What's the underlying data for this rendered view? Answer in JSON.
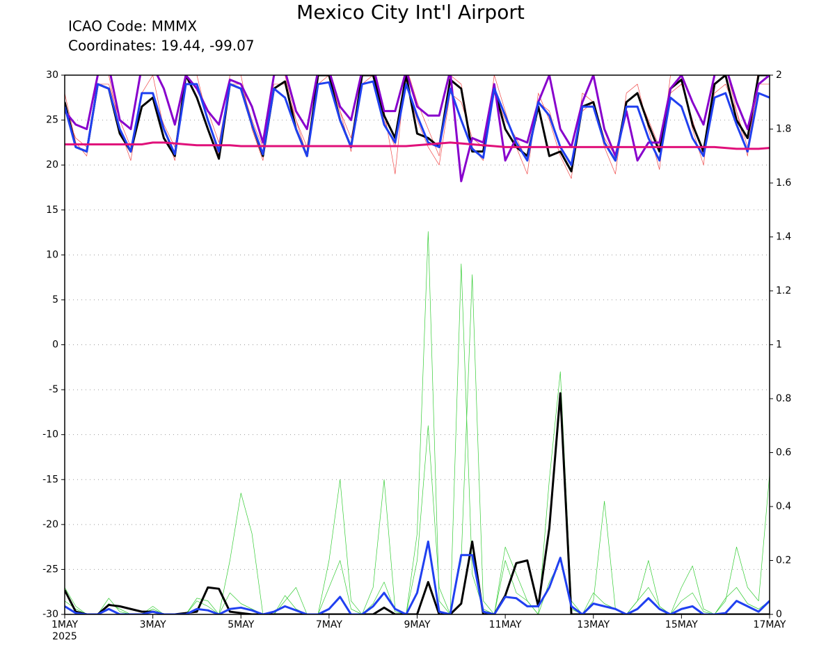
{
  "chart_data": {
    "type": "line",
    "title": "Mexico City Int'l Airport",
    "subtitle_lines": [
      "ICAO Code: MMMX",
      "Coordinates: 19.44, -99.07"
    ],
    "x": [
      0,
      0.25,
      0.5,
      0.75,
      1,
      1.25,
      1.5,
      1.75,
      2,
      2.25,
      2.5,
      2.75,
      3,
      3.25,
      3.5,
      3.75,
      4,
      4.25,
      4.5,
      4.75,
      5,
      5.25,
      5.5,
      5.75,
      6,
      6.25,
      6.5,
      6.75,
      7,
      7.25,
      7.5,
      7.75,
      8,
      8.25,
      8.5,
      8.75,
      9,
      9.25,
      9.5,
      9.75,
      10,
      10.25,
      10.5,
      10.75,
      11,
      11.25,
      11.5,
      11.75,
      12,
      12.25,
      12.5,
      12.75,
      13,
      13.25,
      13.5,
      13.75,
      14,
      14.25,
      14.5,
      14.75,
      15,
      15.25,
      15.5,
      15.75,
      16
    ],
    "xlim": [
      0,
      16
    ],
    "xticks": [
      {
        "value": 0,
        "label": "1MAY"
      },
      {
        "value": 2,
        "label": "3MAY"
      },
      {
        "value": 4,
        "label": "5MAY"
      },
      {
        "value": 6,
        "label": "7MAY"
      },
      {
        "value": 8,
        "label": "9MAY"
      },
      {
        "value": 10,
        "label": "11MAY"
      },
      {
        "value": 12,
        "label": "13MAY"
      },
      {
        "value": 14,
        "label": "15MAY"
      },
      {
        "value": 16,
        "label": "17MAY"
      }
    ],
    "x_year_label": "2025",
    "ylim": [
      -30,
      30
    ],
    "yticks": [
      -30,
      -25,
      -20,
      -15,
      -10,
      -5,
      0,
      5,
      10,
      15,
      20,
      25,
      30
    ],
    "y2lim": [
      0,
      2
    ],
    "y2ticks": [
      0,
      0.2,
      0.4,
      0.6,
      0.8,
      1,
      1.2,
      1.4,
      1.6,
      1.8,
      2
    ],
    "grid": true,
    "series": [
      {
        "color": "#f04848",
        "linewidth": 0.7,
        "values": [
          28,
          22.5,
          21,
          30,
          30,
          24,
          20.5,
          28,
          30,
          24,
          20.5,
          30,
          30,
          25,
          21,
          30,
          30,
          24,
          20.5,
          30,
          30,
          25,
          21,
          31,
          31,
          26,
          21.5,
          31,
          31,
          26,
          19,
          31,
          27,
          24,
          21,
          30,
          29,
          22,
          20.5,
          30,
          26,
          22,
          19,
          28,
          25,
          21,
          18.5,
          28,
          27,
          22,
          19,
          28,
          29,
          24,
          19.5,
          30,
          30,
          24,
          20,
          30,
          31,
          26,
          21,
          31,
          31
        ]
      },
      {
        "color": "#f04848",
        "linewidth": 0.7,
        "values": [
          26,
          23,
          22,
          29,
          29,
          25,
          22,
          28,
          28,
          24.5,
          22,
          29,
          29,
          26,
          22.5,
          29,
          29,
          25,
          22,
          29,
          29,
          25,
          22,
          29,
          30,
          26,
          23,
          29,
          30,
          25,
          22,
          29,
          25,
          22,
          20,
          28,
          27,
          23,
          22,
          28,
          25,
          23,
          20.5,
          27,
          26,
          22,
          20,
          26,
          27,
          23,
          21,
          27,
          28,
          25,
          22,
          28,
          29,
          25,
          21,
          28,
          29,
          26,
          22,
          29,
          29
        ]
      },
      {
        "color": "#33cc33",
        "linewidth": 0.7,
        "axis": "y2",
        "values": [
          0.05,
          0.02,
          0,
          0,
          0.06,
          0.01,
          0,
          0,
          0.02,
          0,
          0,
          0,
          0.05,
          0.03,
          0,
          0.08,
          0.04,
          0.02,
          0,
          0,
          0.07,
          0.02,
          0,
          0,
          0.1,
          0.2,
          0.02,
          0,
          0.04,
          0.12,
          0.01,
          0,
          0.3,
          1.42,
          0.05,
          0,
          1.3,
          0.15,
          0.02,
          0,
          0.2,
          0.08,
          0.05,
          0,
          0.12,
          0.2,
          0.02,
          0,
          0.08,
          0.04,
          0.02,
          0,
          0.05,
          0.1,
          0.03,
          0,
          0.05,
          0.08,
          0.01,
          0,
          0.06,
          0.1,
          0.04,
          0.02,
          0.05
        ]
      },
      {
        "color": "#33cc33",
        "linewidth": 0.7,
        "axis": "y2",
        "values": [
          0.1,
          0.03,
          0,
          0,
          0.04,
          0.02,
          0,
          0,
          0.03,
          0,
          0,
          0,
          0.06,
          0.05,
          0,
          0.2,
          0.45,
          0.3,
          0,
          0,
          0.05,
          0.1,
          0,
          0,
          0.2,
          0.5,
          0.05,
          0,
          0.1,
          0.5,
          0.02,
          0,
          0.2,
          0.7,
          0.1,
          0,
          0.2,
          1.26,
          0.05,
          0,
          0.25,
          0.15,
          0.05,
          0,
          0.5,
          0.9,
          0.05,
          0,
          0.05,
          0.42,
          0.02,
          0,
          0.05,
          0.2,
          0.03,
          0,
          0.1,
          0.18,
          0.02,
          0,
          0.05,
          0.25,
          0.1,
          0.05,
          0.52
        ]
      },
      {
        "color": "#000000",
        "linewidth": 3,
        "values": [
          27,
          22,
          21.5,
          29,
          28.5,
          23.5,
          21.5,
          26.5,
          27.5,
          23,
          21,
          30,
          27.5,
          24,
          20.7,
          29,
          28.5,
          24.5,
          21,
          28.5,
          29.3,
          24,
          21,
          30,
          30,
          25,
          22,
          30,
          30,
          25.5,
          23,
          30,
          23.5,
          23,
          22,
          29.5,
          28.5,
          21.5,
          21.5,
          28.5,
          24,
          22,
          21,
          26.5,
          21,
          21.5,
          19.3,
          26.5,
          27,
          22.5,
          20.5,
          27,
          28,
          24.5,
          21.5,
          28.5,
          29.5,
          24.5,
          21.5,
          29,
          30,
          25,
          23,
          30,
          30
        ]
      },
      {
        "color": "#8800cc",
        "linewidth": 3,
        "values": [
          26,
          24.5,
          24,
          30,
          31,
          25,
          24,
          31,
          31,
          28.5,
          24.5,
          30,
          28.5,
          26,
          24.5,
          29.5,
          29,
          26.5,
          22.5,
          30,
          30.5,
          26,
          24,
          30.5,
          30.5,
          26.5,
          25,
          30.5,
          31,
          26,
          26,
          30.5,
          26.5,
          25.5,
          25.5,
          30.5,
          18.2,
          23,
          22.5,
          29,
          20.5,
          23,
          22.5,
          27,
          30,
          24,
          22,
          27,
          30,
          24,
          21,
          26,
          20.5,
          22.5,
          22.5,
          28.5,
          30,
          27,
          24.5,
          30,
          31,
          27,
          24,
          29,
          30
        ]
      },
      {
        "color": "#2040f0",
        "linewidth": 3,
        "values": [
          26.5,
          22,
          21.5,
          29,
          28.5,
          24,
          21.5,
          28,
          28,
          24,
          21.2,
          29,
          29,
          25,
          21.5,
          29,
          28.5,
          24.5,
          21.2,
          28.5,
          27.5,
          24,
          21,
          29,
          29.2,
          25,
          22,
          29,
          29.3,
          24.5,
          22.5,
          29,
          25.5,
          22.5,
          22,
          28.5,
          25,
          21.8,
          20.8,
          28.5,
          25.5,
          22.5,
          20.5,
          27,
          25.5,
          22,
          20,
          26.5,
          26.5,
          22.5,
          20.5,
          26.5,
          26.5,
          23,
          20.5,
          27.5,
          26.5,
          23,
          21,
          27.5,
          28,
          24.5,
          21.5,
          28,
          27.5
        ]
      },
      {
        "color": "#000000",
        "linewidth": 3,
        "axis": "y2",
        "values": [
          0.09,
          0.01,
          0,
          0,
          0.035,
          0.03,
          0.02,
          0.01,
          0.01,
          0,
          0,
          0.005,
          0.01,
          0.1,
          0.095,
          0.01,
          0.005,
          0,
          0,
          0,
          0,
          0,
          0,
          0,
          0,
          0,
          0,
          0,
          0,
          0.025,
          0,
          0,
          0,
          0.12,
          0,
          0,
          0.04,
          0.27,
          0,
          0,
          0.07,
          0.19,
          0.2,
          0.03,
          0.32,
          0.82,
          0,
          0,
          0,
          0,
          0,
          0,
          0,
          0,
          0,
          0,
          0,
          0,
          0,
          0,
          0,
          0,
          0,
          0,
          0
        ]
      },
      {
        "color": "#2040f0",
        "linewidth": 3,
        "axis": "y2",
        "values": [
          0.03,
          0.005,
          0,
          0,
          0.02,
          0,
          0,
          0,
          0.01,
          0,
          0,
          0,
          0.02,
          0.015,
          0,
          0.02,
          0.025,
          0.015,
          0,
          0.01,
          0.03,
          0.015,
          0,
          0,
          0.02,
          0.065,
          0,
          0,
          0.03,
          0.08,
          0.02,
          0,
          0.08,
          0.27,
          0.01,
          0,
          0.22,
          0.22,
          0.01,
          0,
          0.065,
          0.06,
          0.03,
          0.03,
          0.1,
          0.21,
          0.03,
          0,
          0.04,
          0.03,
          0.02,
          0,
          0.02,
          0.06,
          0.02,
          0,
          0.02,
          0.03,
          0,
          0,
          0.005,
          0.05,
          0.03,
          0.01,
          0.05
        ]
      },
      {
        "color": "#e0107a",
        "linewidth": 3,
        "values": [
          22.3,
          22.3,
          22.3,
          22.3,
          22.3,
          22.3,
          22.3,
          22.3,
          22.5,
          22.5,
          22.4,
          22.3,
          22.2,
          22.2,
          22.2,
          22.2,
          22.1,
          22.1,
          22.1,
          22.1,
          22.1,
          22.1,
          22.1,
          22.1,
          22.1,
          22.1,
          22.1,
          22.1,
          22.1,
          22.1,
          22.1,
          22.1,
          22.2,
          22.3,
          22.4,
          22.5,
          22.4,
          22.3,
          22.2,
          22.1,
          22,
          22,
          22,
          22,
          22,
          22,
          22,
          22,
          22,
          22,
          22,
          22,
          22,
          22,
          22,
          22,
          22,
          22,
          22,
          22,
          21.9,
          21.8,
          21.8,
          21.8,
          21.9
        ]
      }
    ]
  }
}
